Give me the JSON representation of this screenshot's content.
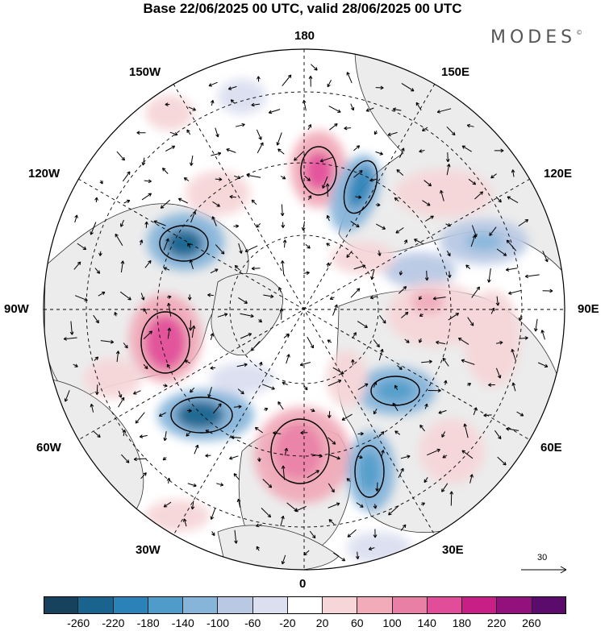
{
  "title": "Base 22/06/2025 00 UTC, valid 28/06/2025 00 UTC",
  "logo": "MODES",
  "logo_mark": "©",
  "longitude_labels": {
    "top": "180",
    "upper_left": "150W",
    "upper_right": "150E",
    "left_upper": "120W",
    "right_upper": "120E",
    "left": "90W",
    "right": "90E",
    "left_lower": "60W",
    "right_lower": "60E",
    "lower_left": "30W",
    "lower_right": "30E",
    "bottom": "0"
  },
  "vector_reference": "30",
  "colorbar": {
    "ticks": [
      "-260",
      "-220",
      "-180",
      "-140",
      "-100",
      "-60",
      "-20",
      "20",
      "60",
      "100",
      "140",
      "180",
      "220",
      "260"
    ],
    "colors": [
      "#16425e",
      "#19648f",
      "#2a82b8",
      "#4f9ccb",
      "#87b5da",
      "#b9c9e4",
      "#dcdff0",
      "#ffffff",
      "#f6d6d8",
      "#f1abb9",
      "#ea7fa6",
      "#e24d99",
      "#c81f87",
      "#93117c",
      "#5a0b6b"
    ]
  },
  "colors": {
    "land": "#ececec",
    "ocean": "#ffffff"
  }
}
